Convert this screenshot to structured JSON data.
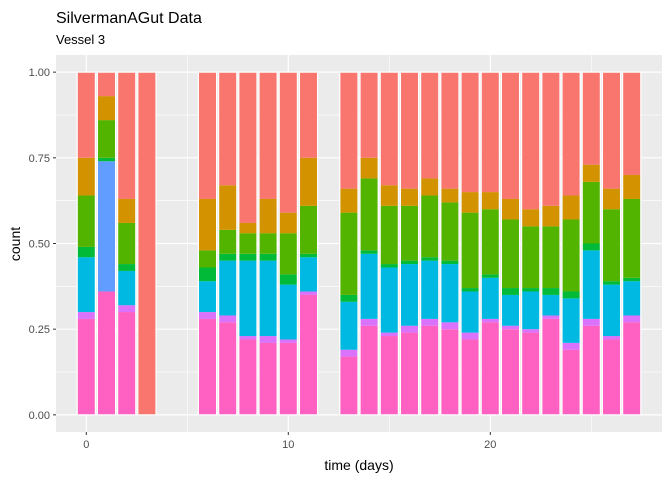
{
  "chart_data": {
    "type": "bar",
    "stacked": "fill",
    "title": "SilvermanAGut Data",
    "subtitle": "Vessel 3",
    "xlabel": "time (days)",
    "ylabel": "count",
    "xlim": [
      -1.5,
      28.5
    ],
    "ylim": [
      -0.05,
      1.05
    ],
    "x_ticks": [
      0,
      10,
      20
    ],
    "x_tick_labels": [
      "0",
      "10",
      "20"
    ],
    "y_ticks": [
      0,
      0.25,
      0.5,
      0.75,
      1
    ],
    "y_tick_labels": [
      "0.00",
      "0.25",
      "0.50",
      "0.75",
      "1.00"
    ],
    "grid": true,
    "bar_width": 0.9,
    "panel_background": "#ebebeb",
    "grid_color": "#ffffff",
    "bar_separator_color": "#ffffff",
    "colors": {
      "pink": "#ff61c3",
      "magenta": "#db72fb",
      "cyan": "#00b9e3",
      "blue": "#619cff",
      "green": "#00ba38",
      "olive": "#53b400",
      "gold": "#d39200",
      "salmon": "#f8766d"
    },
    "bars": [
      {
        "x": 0,
        "segments": [
          [
            "pink",
            0.28
          ],
          [
            "magenta",
            0.02
          ],
          [
            "cyan",
            0.16
          ],
          [
            "green",
            0.03
          ],
          [
            "olive",
            0.15
          ],
          [
            "gold",
            0.11
          ],
          [
            "salmon",
            0.25
          ]
        ]
      },
      {
        "x": 1,
        "segments": [
          [
            "pink",
            0.36
          ],
          [
            "blue",
            0.38
          ],
          [
            "green",
            0.01
          ],
          [
            "olive",
            0.11
          ],
          [
            "gold",
            0.07
          ],
          [
            "salmon",
            0.07
          ]
        ]
      },
      {
        "x": 2,
        "segments": [
          [
            "pink",
            0.3
          ],
          [
            "magenta",
            0.02
          ],
          [
            "cyan",
            0.1
          ],
          [
            "green",
            0.02
          ],
          [
            "olive",
            0.12
          ],
          [
            "gold",
            0.07
          ],
          [
            "salmon",
            0.37
          ]
        ]
      },
      {
        "x": 3,
        "segments": [
          [
            "salmon",
            1.0
          ]
        ]
      },
      {
        "x": 6,
        "segments": [
          [
            "pink",
            0.28
          ],
          [
            "magenta",
            0.02
          ],
          [
            "cyan",
            0.09
          ],
          [
            "green",
            0.04
          ],
          [
            "olive",
            0.05
          ],
          [
            "gold",
            0.15
          ],
          [
            "salmon",
            0.37
          ]
        ]
      },
      {
        "x": 7,
        "segments": [
          [
            "pink",
            0.27
          ],
          [
            "magenta",
            0.02
          ],
          [
            "cyan",
            0.16
          ],
          [
            "green",
            0.02
          ],
          [
            "olive",
            0.07
          ],
          [
            "gold",
            0.13
          ],
          [
            "salmon",
            0.33
          ]
        ]
      },
      {
        "x": 8,
        "segments": [
          [
            "pink",
            0.22
          ],
          [
            "magenta",
            0.01
          ],
          [
            "cyan",
            0.22
          ],
          [
            "green",
            0.02
          ],
          [
            "olive",
            0.06
          ],
          [
            "gold",
            0.03
          ],
          [
            "salmon",
            0.44
          ]
        ]
      },
      {
        "x": 9,
        "segments": [
          [
            "pink",
            0.21
          ],
          [
            "magenta",
            0.02
          ],
          [
            "cyan",
            0.22
          ],
          [
            "green",
            0.02
          ],
          [
            "olive",
            0.06
          ],
          [
            "gold",
            0.1
          ],
          [
            "salmon",
            0.37
          ]
        ]
      },
      {
        "x": 10,
        "segments": [
          [
            "pink",
            0.21
          ],
          [
            "magenta",
            0.01
          ],
          [
            "cyan",
            0.16
          ],
          [
            "green",
            0.03
          ],
          [
            "olive",
            0.12
          ],
          [
            "gold",
            0.06
          ],
          [
            "salmon",
            0.41
          ]
        ]
      },
      {
        "x": 11,
        "segments": [
          [
            "pink",
            0.35
          ],
          [
            "magenta",
            0.01
          ],
          [
            "cyan",
            0.1
          ],
          [
            "green",
            0.01
          ],
          [
            "olive",
            0.14
          ],
          [
            "gold",
            0.14
          ],
          [
            "salmon",
            0.25
          ]
        ]
      },
      {
        "x": 13,
        "segments": [
          [
            "pink",
            0.17
          ],
          [
            "magenta",
            0.02
          ],
          [
            "cyan",
            0.14
          ],
          [
            "green",
            0.02
          ],
          [
            "olive",
            0.24
          ],
          [
            "gold",
            0.07
          ],
          [
            "salmon",
            0.34
          ]
        ]
      },
      {
        "x": 14,
        "segments": [
          [
            "pink",
            0.26
          ],
          [
            "magenta",
            0.02
          ],
          [
            "cyan",
            0.19
          ],
          [
            "green",
            0.01
          ],
          [
            "olive",
            0.21
          ],
          [
            "gold",
            0.06
          ],
          [
            "salmon",
            0.25
          ]
        ]
      },
      {
        "x": 15,
        "segments": [
          [
            "pink",
            0.23
          ],
          [
            "magenta",
            0.01
          ],
          [
            "cyan",
            0.19
          ],
          [
            "green",
            0.01
          ],
          [
            "olive",
            0.17
          ],
          [
            "gold",
            0.06
          ],
          [
            "salmon",
            0.33
          ]
        ]
      },
      {
        "x": 16,
        "segments": [
          [
            "pink",
            0.24
          ],
          [
            "magenta",
            0.02
          ],
          [
            "cyan",
            0.18
          ],
          [
            "green",
            0.01
          ],
          [
            "olive",
            0.16
          ],
          [
            "gold",
            0.05
          ],
          [
            "salmon",
            0.34
          ]
        ]
      },
      {
        "x": 17,
        "segments": [
          [
            "pink",
            0.26
          ],
          [
            "magenta",
            0.02
          ],
          [
            "cyan",
            0.17
          ],
          [
            "green",
            0.01
          ],
          [
            "olive",
            0.18
          ],
          [
            "gold",
            0.05
          ],
          [
            "salmon",
            0.31
          ]
        ]
      },
      {
        "x": 18,
        "segments": [
          [
            "pink",
            0.25
          ],
          [
            "magenta",
            0.02
          ],
          [
            "cyan",
            0.17
          ],
          [
            "green",
            0.01
          ],
          [
            "olive",
            0.17
          ],
          [
            "gold",
            0.04
          ],
          [
            "salmon",
            0.34
          ]
        ]
      },
      {
        "x": 19,
        "segments": [
          [
            "pink",
            0.22
          ],
          [
            "magenta",
            0.02
          ],
          [
            "cyan",
            0.12
          ],
          [
            "green",
            0.01
          ],
          [
            "olive",
            0.22
          ],
          [
            "gold",
            0.06
          ],
          [
            "salmon",
            0.35
          ]
        ]
      },
      {
        "x": 20,
        "segments": [
          [
            "pink",
            0.27
          ],
          [
            "magenta",
            0.01
          ],
          [
            "cyan",
            0.12
          ],
          [
            "green",
            0.01
          ],
          [
            "olive",
            0.19
          ],
          [
            "gold",
            0.05
          ],
          [
            "salmon",
            0.35
          ]
        ]
      },
      {
        "x": 21,
        "segments": [
          [
            "pink",
            0.25
          ],
          [
            "magenta",
            0.01
          ],
          [
            "cyan",
            0.09
          ],
          [
            "green",
            0.02
          ],
          [
            "olive",
            0.2
          ],
          [
            "gold",
            0.06
          ],
          [
            "salmon",
            0.37
          ]
        ]
      },
      {
        "x": 22,
        "segments": [
          [
            "pink",
            0.24
          ],
          [
            "magenta",
            0.01
          ],
          [
            "cyan",
            0.11
          ],
          [
            "green",
            0.01
          ],
          [
            "olive",
            0.18
          ],
          [
            "gold",
            0.05
          ],
          [
            "salmon",
            0.4
          ]
        ]
      },
      {
        "x": 23,
        "segments": [
          [
            "pink",
            0.28
          ],
          [
            "magenta",
            0.01
          ],
          [
            "cyan",
            0.06
          ],
          [
            "green",
            0.02
          ],
          [
            "olive",
            0.18
          ],
          [
            "gold",
            0.06
          ],
          [
            "salmon",
            0.39
          ]
        ]
      },
      {
        "x": 24,
        "segments": [
          [
            "pink",
            0.19
          ],
          [
            "magenta",
            0.02
          ],
          [
            "cyan",
            0.13
          ],
          [
            "green",
            0.02
          ],
          [
            "olive",
            0.21
          ],
          [
            "gold",
            0.07
          ],
          [
            "salmon",
            0.36
          ]
        ]
      },
      {
        "x": 25,
        "segments": [
          [
            "pink",
            0.26
          ],
          [
            "magenta",
            0.02
          ],
          [
            "cyan",
            0.2
          ],
          [
            "green",
            0.02
          ],
          [
            "olive",
            0.18
          ],
          [
            "gold",
            0.05
          ],
          [
            "salmon",
            0.27
          ]
        ]
      },
      {
        "x": 26,
        "segments": [
          [
            "pink",
            0.22
          ],
          [
            "magenta",
            0.01
          ],
          [
            "cyan",
            0.15
          ],
          [
            "green",
            0.01
          ],
          [
            "olive",
            0.21
          ],
          [
            "gold",
            0.06
          ],
          [
            "salmon",
            0.34
          ]
        ]
      },
      {
        "x": 27,
        "segments": [
          [
            "pink",
            0.27
          ],
          [
            "magenta",
            0.02
          ],
          [
            "cyan",
            0.1
          ],
          [
            "green",
            0.01
          ],
          [
            "olive",
            0.23
          ],
          [
            "gold",
            0.07
          ],
          [
            "salmon",
            0.3
          ]
        ]
      }
    ]
  }
}
